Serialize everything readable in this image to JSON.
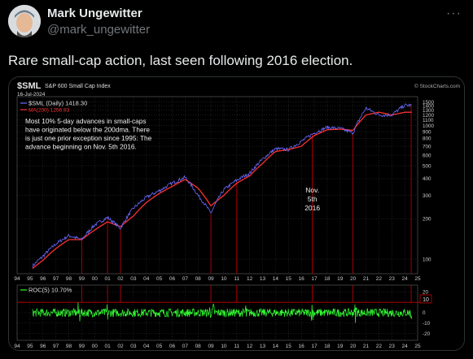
{
  "author": {
    "name": "Mark Ungewitter",
    "handle": "@mark_ungewitter",
    "more_icon": "more-dots-icon"
  },
  "tweet_text": "Rare small-cap action, last seen following 2016 election.",
  "chart": {
    "ticker": "$SML",
    "index_name": "S&P 600 Small Cap Index",
    "date": "16-Jul-2024",
    "watermark": "© StockCharts.com",
    "legend_price": "$SML (Daily) 1418.30",
    "legend_ma": "MA(200) 1256.93",
    "legend_roc": "ROC(5) 10.70%",
    "annotation_lines": [
      "Most 10% 5-day advances in small-caps",
      "have originated below the 200dma. There",
      "is just one prior exception since 1995: The",
      "advance beginning on Nov. 5th 2016."
    ],
    "nov_label": [
      "Nov.",
      "5th",
      "2016"
    ],
    "x_ticks": [
      "94",
      "95",
      "96",
      "97",
      "98",
      "99",
      "00",
      "01",
      "02",
      "03",
      "04",
      "05",
      "06",
      "07",
      "08",
      "09",
      "10",
      "11",
      "12",
      "13",
      "14",
      "15",
      "16",
      "17",
      "18",
      "19",
      "20",
      "21",
      "22",
      "23",
      "24",
      "25"
    ],
    "y_ticks_price": [
      "1500",
      "1400",
      "1300",
      "1200",
      "1100",
      "1000",
      "900",
      "800",
      "700",
      "600",
      "500",
      "400",
      "300",
      "200",
      "100"
    ],
    "y_ticks_roc": [
      "20",
      "10",
      "0",
      "-10",
      "-20"
    ],
    "roc_highlight": "10",
    "colors": {
      "price": "#6a6aff",
      "ma": "#ff3030",
      "roc": "#33ff33",
      "grid": "#3a3a3a",
      "markers": "#cc0000"
    }
  },
  "chart_data": {
    "type": "line",
    "title": "S&P 600 Small Cap Index",
    "scale": "log",
    "ylim": [
      80,
      1600
    ],
    "series": [
      {
        "name": "$SML (Daily) 1418.30",
        "x": [
          "1995",
          "1996",
          "1997",
          "1998",
          "1999",
          "2000",
          "2001",
          "2002",
          "2003",
          "2004",
          "2005",
          "2006",
          "2007",
          "2008",
          "2009",
          "2010",
          "2011",
          "2012",
          "2013",
          "2014",
          "2015",
          "2016",
          "2017",
          "2018",
          "2019",
          "2020",
          "2021",
          "2022",
          "2023",
          "2024"
        ],
        "values": [
          85,
          105,
          130,
          150,
          140,
          180,
          205,
          170,
          240,
          290,
          325,
          370,
          410,
          300,
          220,
          330,
          390,
          440,
          560,
          670,
          660,
          760,
          880,
          970,
          950,
          880,
          1350,
          1200,
          1200,
          1418
        ]
      },
      {
        "name": "MA(200) 1256.93",
        "x": [
          "1995",
          "1996",
          "1997",
          "1998",
          "1999",
          "2000",
          "2001",
          "2002",
          "2003",
          "2004",
          "2005",
          "2006",
          "2007",
          "2008",
          "2009",
          "2010",
          "2011",
          "2012",
          "2013",
          "2014",
          "2015",
          "2016",
          "2017",
          "2018",
          "2019",
          "2020",
          "2021",
          "2022",
          "2023",
          "2024"
        ],
        "values": [
          82,
          98,
          120,
          140,
          140,
          165,
          190,
          175,
          210,
          265,
          310,
          350,
          395,
          340,
          250,
          300,
          370,
          420,
          520,
          640,
          660,
          700,
          840,
          930,
          940,
          920,
          1200,
          1260,
          1200,
          1257
        ]
      }
    ],
    "roc_series": {
      "name": "ROC(5) 10.70%",
      "ylim": [
        -25,
        25
      ],
      "highlight_level": 10
    },
    "marker_dates": [
      "1999",
      "2001",
      "2002",
      "2009",
      "2011",
      "2016.85",
      "2020",
      "2024.5"
    ]
  }
}
